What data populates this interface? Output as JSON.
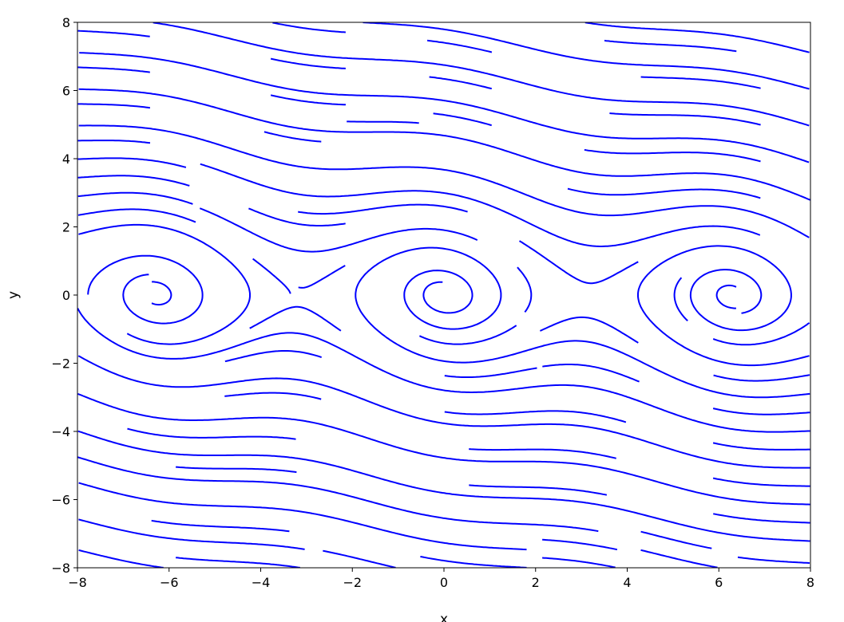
{
  "chart_data": {
    "type": "streamplot",
    "xlabel": "x",
    "ylabel": "y",
    "xlim": [
      -8,
      8
    ],
    "ylim": [
      -8,
      8
    ],
    "xticks": [
      "-8",
      "-6",
      "-4",
      "-2",
      "0",
      "2",
      "4",
      "6",
      "8"
    ],
    "yticks": [
      "-8",
      "-6",
      "-4",
      "-2",
      "0",
      "2",
      "4",
      "6",
      "8"
    ],
    "line_color": "#0000ff",
    "grid": false,
    "legend": "none"
  }
}
